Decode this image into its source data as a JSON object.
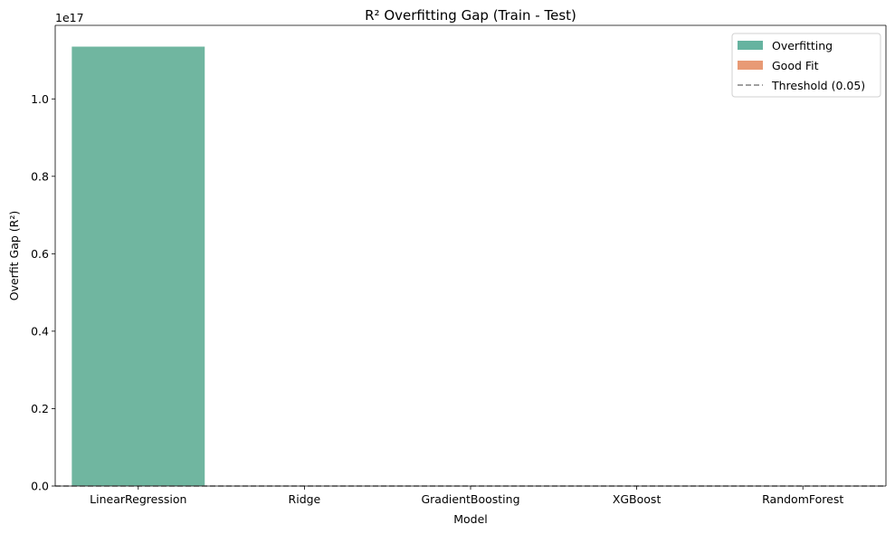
{
  "chart_data": {
    "type": "bar",
    "title": "R² Overfitting Gap (Train - Test)",
    "xlabel": "Model",
    "ylabel": "Overfit Gap (R²)",
    "offset_label": "1e17",
    "categories": [
      "LinearRegression",
      "Ridge",
      "GradientBoosting",
      "XGBoost",
      "RandomForest"
    ],
    "values": [
      1.135e+17,
      0,
      0,
      0,
      0
    ],
    "status": [
      "Overfitting",
      "Good Fit",
      "Good Fit",
      "Good Fit",
      "Good Fit"
    ],
    "ylim": [
      0,
      1.19e+17
    ],
    "y_ticks": [
      0,
      2e+16,
      4e+16,
      6e+16,
      8e+16,
      1e+17
    ],
    "y_tick_labels": [
      "0.0",
      "0.2",
      "0.4",
      "0.6",
      "0.8",
      "1.0"
    ],
    "threshold": {
      "value": 0.05,
      "label": "Threshold (0.05)",
      "color": "#808080"
    },
    "legend": {
      "position": "top-right",
      "items": [
        {
          "label": "Overfitting",
          "color": "#66b3a0",
          "kind": "patch"
        },
        {
          "label": "Good Fit",
          "color": "#e89a75",
          "kind": "patch"
        },
        {
          "label": "Threshold (0.05)",
          "color": "#808080",
          "kind": "dashed-line"
        }
      ]
    },
    "colors": {
      "Overfitting": "#70b6a0",
      "Good Fit": "#e8966e"
    },
    "grid": false
  }
}
